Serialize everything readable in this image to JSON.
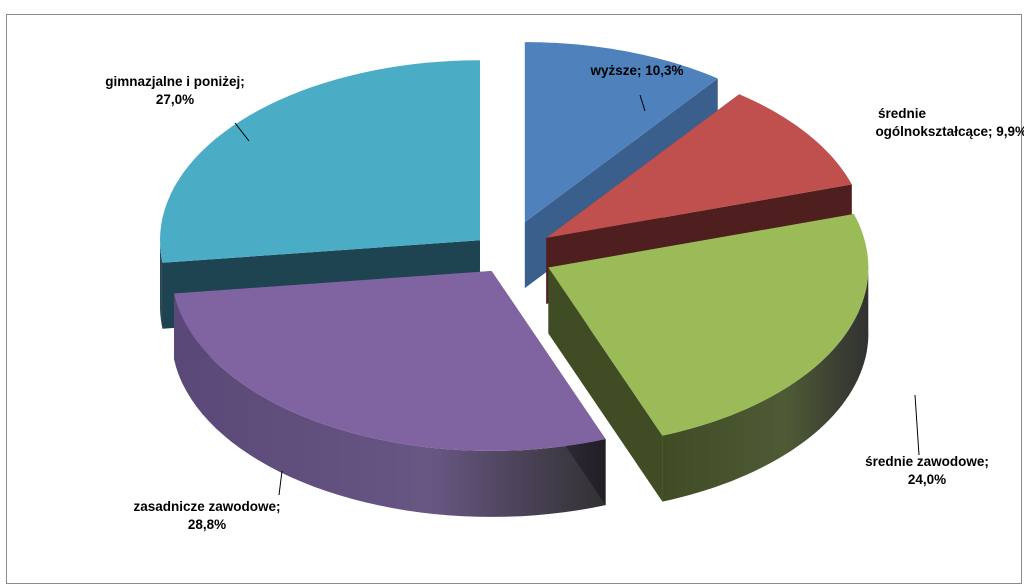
{
  "chart_data": {
    "type": "pie",
    "title": "",
    "categories": [
      "wyższe",
      "średnie ogólnokształcące",
      "średnie zawodowe",
      "zasadnicze zawodowe",
      "gimnazjalne i poniżej"
    ],
    "values": [
      10.3,
      9.9,
      24.0,
      28.8,
      27.0
    ],
    "unit": "%",
    "labels": [
      {
        "lines": [
          "wyższe; 10,3%"
        ]
      },
      {
        "lines": [
          "średnie",
          "ogólnokształcące; 9,9%"
        ]
      },
      {
        "lines": [
          "średnie zawodowe;",
          "24,0%"
        ]
      },
      {
        "lines": [
          "zasadnicze zawodowe;",
          "28,8%"
        ]
      },
      {
        "lines": [
          "gimnazjalne i poniżej;",
          "27,0%"
        ]
      }
    ],
    "colors": [
      "#4f81bd",
      "#c0504d",
      "#9bbb59",
      "#8064a2",
      "#4bacc6"
    ],
    "side_colors": [
      "#3a5f8c",
      "#4e1f1e",
      "#3f4c24",
      "#5a4878",
      "#1e4452"
    ],
    "style": "3d-exploded-pie",
    "legend": "none"
  }
}
